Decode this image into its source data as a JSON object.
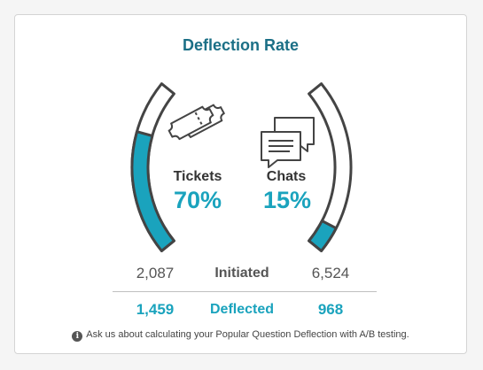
{
  "card": {
    "title": "Deflection Rate",
    "tickets": {
      "label": "Tickets",
      "value": "70%",
      "fill_fraction": 0.7
    },
    "chats": {
      "label": "Chats",
      "value": "15%",
      "fill_fraction": 0.15
    },
    "initiated": {
      "label": "Initiated",
      "tickets": "2,087",
      "chats": "6,524"
    },
    "deflected": {
      "label": "Deflected",
      "tickets": "1,459",
      "chats": "968"
    },
    "footnote": "Ask us about calculating your Popular Question Deflection with A/B testing."
  },
  "colors": {
    "accent": "#1aa3bd",
    "title": "#1b6f86",
    "gauge_track": "#ffffff",
    "gauge_outline": "#444444"
  },
  "icons": {
    "tickets": "ticket-icon",
    "chats": "chat-bubbles-icon",
    "info": "info-icon"
  }
}
